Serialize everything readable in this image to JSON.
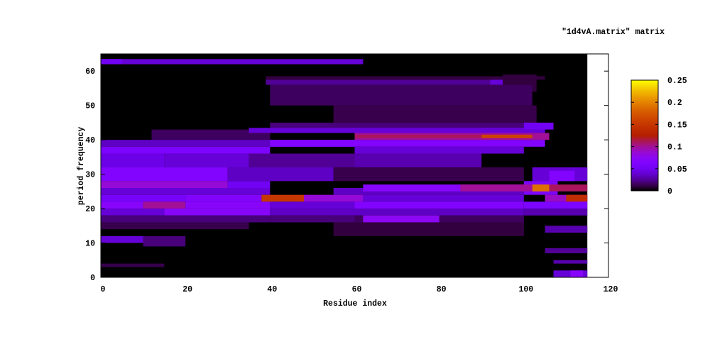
{
  "chart_data": {
    "type": "heatmap",
    "title": "\"1d4vA.matrix\" matrix",
    "xlabel": "Residue index",
    "ylabel": "period frequency",
    "xlim": [
      0,
      120
    ],
    "ylim": [
      0,
      65
    ],
    "x_ticks": [
      0,
      20,
      40,
      60,
      80,
      100,
      120
    ],
    "y_ticks": [
      0,
      10,
      20,
      30,
      40,
      50,
      60
    ],
    "x_tick_labels": [
      "0",
      "20",
      "40",
      "60",
      "80",
      "100",
      "120"
    ],
    "y_tick_labels": [
      "0",
      "10",
      "20",
      "30",
      "40",
      "50",
      "60"
    ],
    "colorbar": {
      "range": [
        0,
        0.25
      ],
      "ticks": [
        0,
        0.05,
        0.1,
        0.15,
        0.2,
        0.25
      ],
      "tick_labels": [
        "0",
        "0.05",
        "0.1",
        "0.15",
        "0.2",
        "0.25"
      ],
      "palette": "black-blue-violet-yellow (rgbformulae 7,5,15)"
    },
    "data_extent_x": [
      0,
      115
    ],
    "background_value": 0,
    "regions_columns": [
      "x0",
      "x1",
      "y0",
      "y1",
      "value"
    ],
    "regions": [
      [
        0,
        62,
        62,
        63.5,
        0.04
      ],
      [
        0,
        5,
        62,
        63.5,
        0.05
      ],
      [
        39,
        105,
        57.5,
        58.5,
        0.01
      ],
      [
        95,
        103,
        54,
        59,
        0.01
      ],
      [
        39,
        92,
        56,
        57.5,
        0.025
      ],
      [
        92,
        95,
        56,
        57.5,
        0.04
      ],
      [
        40,
        102,
        50,
        56,
        0.015
      ],
      [
        55,
        103,
        45,
        50,
        0.012
      ],
      [
        12,
        40,
        40,
        43,
        0.015
      ],
      [
        40,
        105,
        42,
        45,
        0.02
      ],
      [
        35,
        105,
        42,
        43.5,
        0.04
      ],
      [
        100,
        107,
        43,
        45,
        0.05
      ],
      [
        0,
        60,
        38,
        40,
        0.035
      ],
      [
        40,
        105,
        38,
        40,
        0.065
      ],
      [
        60,
        106,
        40,
        42,
        0.1
      ],
      [
        60,
        100,
        40.5,
        41.5,
        0.11
      ],
      [
        90,
        102,
        40.5,
        41.5,
        0.16
      ],
      [
        0,
        40,
        36,
        38,
        0.06
      ],
      [
        60,
        100,
        36,
        38,
        0.04
      ],
      [
        0,
        15,
        32,
        36,
        0.045
      ],
      [
        15,
        35,
        32,
        36,
        0.04
      ],
      [
        35,
        60,
        32,
        36,
        0.025
      ],
      [
        60,
        90,
        32,
        36,
        0.03
      ],
      [
        0,
        30,
        28,
        32,
        0.065
      ],
      [
        30,
        55,
        28,
        32,
        0.035
      ],
      [
        55,
        100,
        28,
        32,
        0.012
      ],
      [
        102,
        115,
        28,
        32,
        0.04
      ],
      [
        106,
        112,
        28,
        31,
        0.065
      ],
      [
        0,
        30,
        26,
        28,
        0.085
      ],
      [
        30,
        40,
        26,
        28,
        0.05
      ],
      [
        0,
        40,
        24,
        26,
        0.04
      ],
      [
        55,
        100,
        24,
        26,
        0.035
      ],
      [
        100,
        108,
        24,
        28,
        0.06
      ],
      [
        62,
        100,
        25,
        27,
        0.07
      ],
      [
        85,
        102,
        25,
        27,
        0.1
      ],
      [
        102,
        106,
        25,
        27,
        0.19
      ],
      [
        106,
        115,
        25,
        27,
        0.11
      ],
      [
        0,
        20,
        22,
        24,
        0.055
      ],
      [
        20,
        38,
        22,
        24,
        0.065
      ],
      [
        38,
        48,
        22,
        24,
        0.15
      ],
      [
        48,
        62,
        22,
        24,
        0.085
      ],
      [
        62,
        100,
        22,
        24,
        0.04
      ],
      [
        105,
        115,
        22,
        24,
        0.09
      ],
      [
        110,
        115,
        22,
        24,
        0.14
      ],
      [
        0,
        10,
        20,
        22,
        0.07
      ],
      [
        10,
        20,
        20,
        22,
        0.1
      ],
      [
        20,
        40,
        20,
        22,
        0.07
      ],
      [
        40,
        60,
        20,
        22,
        0.04
      ],
      [
        60,
        100,
        20,
        22,
        0.065
      ],
      [
        100,
        115,
        20,
        22,
        0.06
      ],
      [
        0,
        15,
        18,
        20,
        0.04
      ],
      [
        15,
        40,
        18,
        20,
        0.07
      ],
      [
        40,
        100,
        18,
        20,
        0.035
      ],
      [
        100,
        115,
        18,
        20,
        0.03
      ],
      [
        0,
        40,
        16,
        18,
        0.02
      ],
      [
        40,
        60,
        16,
        18,
        0.02
      ],
      [
        60,
        100,
        15,
        18,
        0.015
      ],
      [
        62,
        80,
        16,
        18,
        0.075
      ],
      [
        0,
        35,
        14,
        16,
        0.012
      ],
      [
        55,
        100,
        12,
        16,
        0.01
      ],
      [
        0,
        10,
        10,
        12,
        0.04
      ],
      [
        10,
        20,
        9,
        12,
        0.02
      ],
      [
        105,
        115,
        13,
        15,
        0.03
      ],
      [
        105,
        115,
        7,
        8.5,
        0.025
      ],
      [
        107,
        115,
        4,
        5,
        0.03
      ],
      [
        107,
        115,
        0,
        2,
        0.04
      ],
      [
        111,
        114,
        0,
        2,
        0.07
      ],
      [
        0,
        15,
        3,
        4,
        0.012
      ]
    ]
  }
}
